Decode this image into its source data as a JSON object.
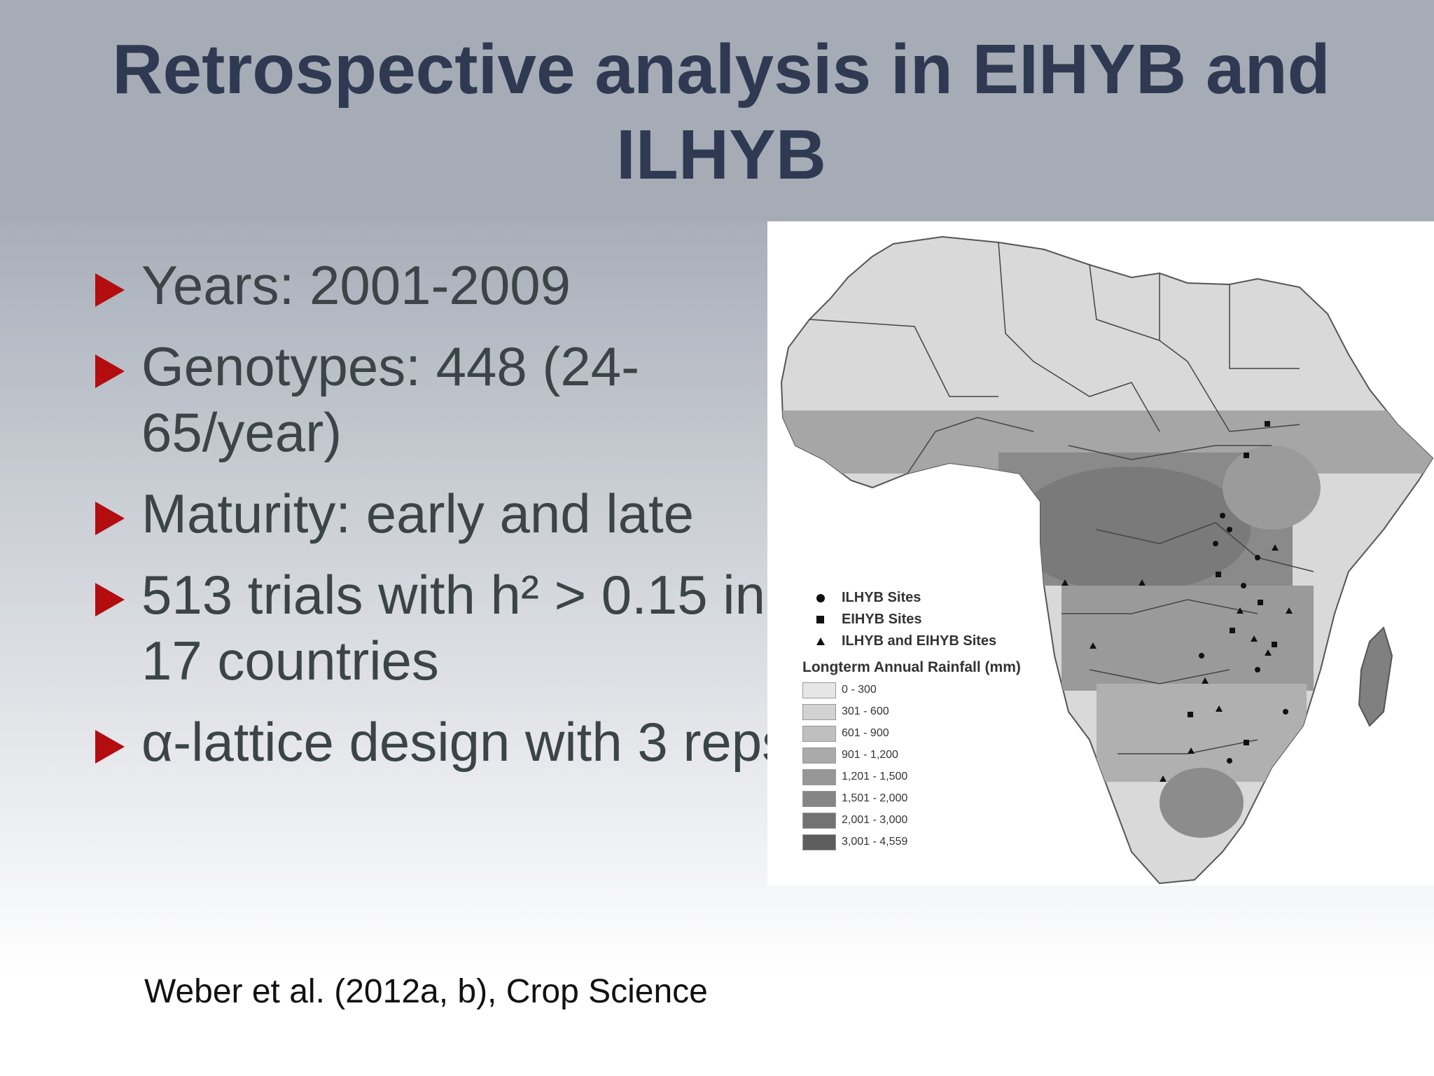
{
  "slide": {
    "title": "Retrospective analysis in EIHYB and ILHYB",
    "bullets": [
      "Years: 2001-2009",
      "Genotypes: 448 (24-65/year)",
      "Maturity: early and late",
      "513 trials with h² > 0.15 in 17 countries",
      "α-lattice design with 3 reps"
    ],
    "citation": "Weber et al. (2012a, b), Crop Science"
  },
  "map": {
    "legend": {
      "sites": [
        {
          "symbol": "circle",
          "label": "ILHYB Sites"
        },
        {
          "symbol": "square",
          "label": "EIHYB Sites"
        },
        {
          "symbol": "triangle",
          "label": "ILHYB and EIHYB Sites"
        }
      ],
      "rainfall_title": "Longterm Annual Rainfall (mm)",
      "rainfall_classes": [
        {
          "label": "0 - 300",
          "color": "#e6e6e6"
        },
        {
          "label": "301 - 600",
          "color": "#d2d2d2"
        },
        {
          "label": "601 - 900",
          "color": "#bfbfbf"
        },
        {
          "label": "901 - 1,200",
          "color": "#aaaaaa"
        },
        {
          "label": "1,201 - 1,500",
          "color": "#979797"
        },
        {
          "label": "1,501 - 2,000",
          "color": "#858585"
        },
        {
          "label": "2,001 - 3,000",
          "color": "#727272"
        },
        {
          "label": "3,001 - 4,559",
          "color": "#5e5e5e"
        }
      ]
    }
  }
}
